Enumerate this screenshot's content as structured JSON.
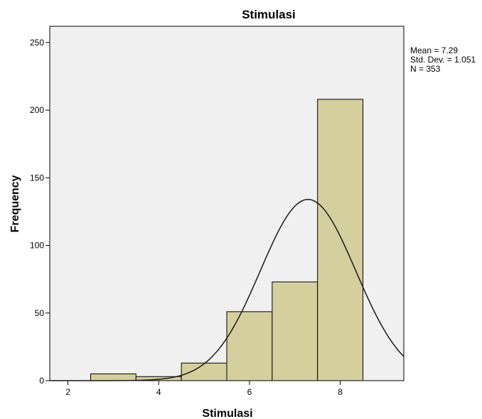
{
  "chart_data": {
    "type": "bar",
    "title": "Stimulasi",
    "xlabel": "Stimulasi",
    "ylabel": "Frequency",
    "bins": [
      {
        "start": 2.5,
        "end": 3.5,
        "count": 5
      },
      {
        "start": 3.5,
        "end": 4.5,
        "count": 3
      },
      {
        "start": 4.5,
        "end": 5.5,
        "count": 13
      },
      {
        "start": 5.5,
        "end": 6.5,
        "count": 51
      },
      {
        "start": 6.5,
        "end": 7.5,
        "count": 73
      },
      {
        "start": 7.5,
        "end": 8.5,
        "count": 208
      }
    ],
    "xlim": [
      1.6,
      9.4
    ],
    "ylim": [
      0,
      262
    ],
    "x_ticks": [
      2,
      4,
      6,
      8
    ],
    "y_ticks": [
      0,
      50,
      100,
      150,
      200,
      250
    ],
    "normal_curve": {
      "mean": 7.29,
      "std": 1.051,
      "n": 353,
      "bin_width": 1
    },
    "stats": {
      "mean": "Mean = 7.29",
      "std": "Std. Dev. = 1.051",
      "n": "N = 353"
    },
    "colors": {
      "bar_fill": "#d4cf9d",
      "bar_stroke": "#000000",
      "plot_bg": "#f0f0f0",
      "curve": "#1a1a1a"
    },
    "grid": false
  }
}
